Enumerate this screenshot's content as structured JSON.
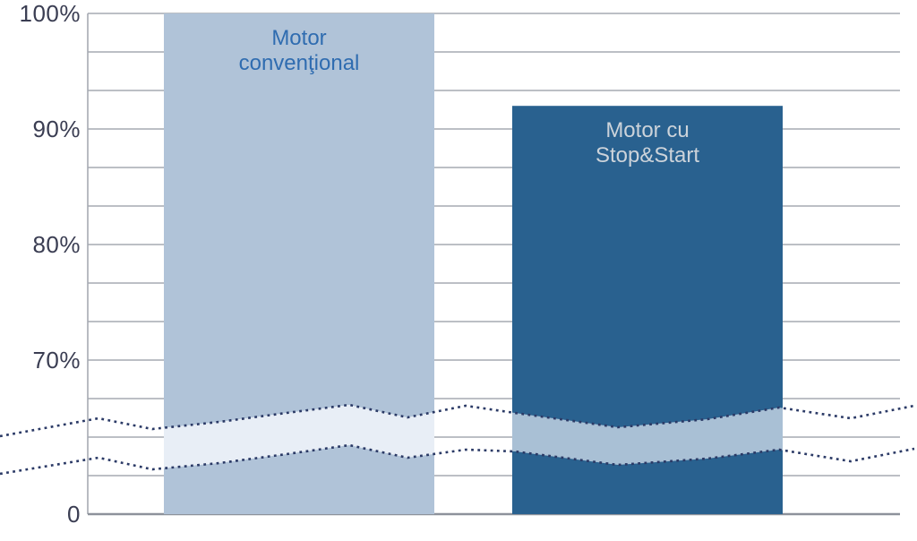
{
  "chart_data": {
    "type": "bar",
    "title": "",
    "categories": [
      "Motor convenţional",
      "Motor cu Stop&Start"
    ],
    "values": [
      100,
      92
    ],
    "unit": "%",
    "xlabel": "",
    "ylabel": "",
    "ylim": [
      0,
      100
    ],
    "y_ticks": [
      {
        "label": "100%",
        "value": 100
      },
      {
        "label": "90%",
        "value": 90
      },
      {
        "label": "80%",
        "value": 80
      },
      {
        "label": "70%",
        "value": 70
      },
      {
        "label": "0",
        "value": 0
      }
    ],
    "grid": true,
    "gridline_interval_pct": 3.33,
    "legend": "none",
    "axis_break": {
      "present": true,
      "style": "two wavy dotted lines across full width; bar fill lightened between them",
      "between_values": [
        0,
        65
      ]
    },
    "colors": {
      "bar_conventional": "#b0c3d8",
      "bar_stopstart": "#29618f",
      "band_on_conventional": "#e8eef6",
      "band_on_stopstart": "#a9c0d5",
      "label_conventional_text": "#2f6cb0",
      "label_stopstart_text": "#ccd3da",
      "axis_text": "#3a3d52",
      "gridline": "#a6aab2",
      "axis_line": "#8d929b",
      "break_line": "#2b3a66"
    }
  }
}
